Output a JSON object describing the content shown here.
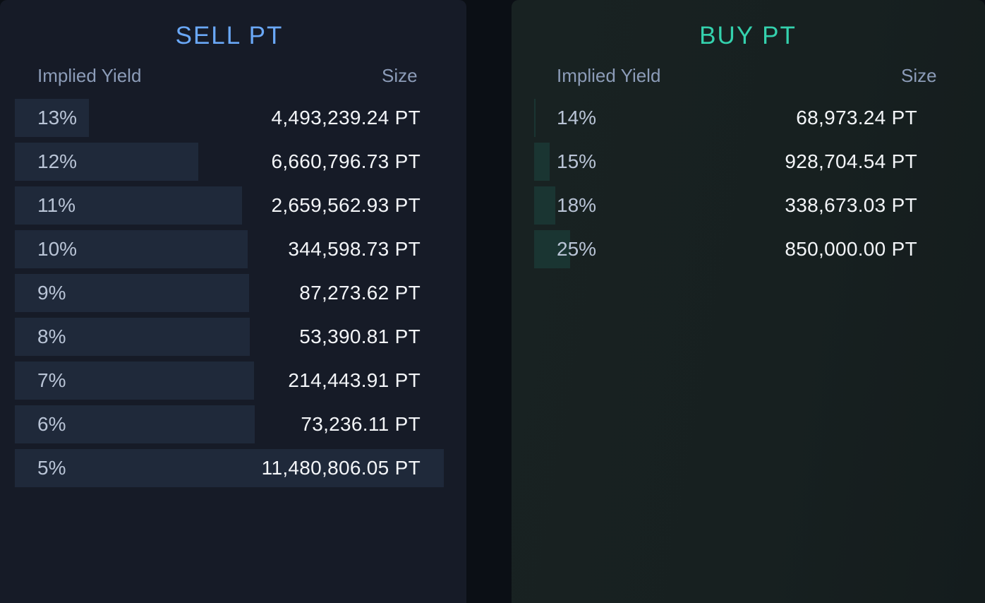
{
  "sell": {
    "title": "SELL PT",
    "col_yield": "Implied Yield",
    "col_size": "Size",
    "color": "#6aa8f7",
    "rows": [
      {
        "yield": "13%",
        "size": "4,493,239.24 PT",
        "depth": 0.172
      },
      {
        "yield": "12%",
        "size": "6,660,796.73 PT",
        "depth": 0.428
      },
      {
        "yield": "11%",
        "size": "2,659,562.93 PT",
        "depth": 0.53
      },
      {
        "yield": "10%",
        "size": "344,598.73 PT",
        "depth": 0.543
      },
      {
        "yield": "9%",
        "size": "87,273.62 PT",
        "depth": 0.546
      },
      {
        "yield": "8%",
        "size": "53,390.81 PT",
        "depth": 0.548
      },
      {
        "yield": "7%",
        "size": "214,443.91 PT",
        "depth": 0.558
      },
      {
        "yield": "6%",
        "size": "73,236.11 PT",
        "depth": 0.559
      },
      {
        "yield": "5%",
        "size": "11,480,806.05 PT",
        "depth": 1.0
      }
    ]
  },
  "buy": {
    "title": "BUY PT",
    "col_yield": "Implied Yield",
    "col_size": "Size",
    "color": "#34d1ad",
    "rows": [
      {
        "yield": "14%",
        "size": "68,973.24 PT",
        "depth": 0.003
      },
      {
        "yield": "15%",
        "size": "928,704.54 PT",
        "depth": 0.038
      },
      {
        "yield": "18%",
        "size": "338,673.03 PT",
        "depth": 0.052
      },
      {
        "yield": "25%",
        "size": "850,000.00 PT",
        "depth": 0.088
      }
    ]
  }
}
